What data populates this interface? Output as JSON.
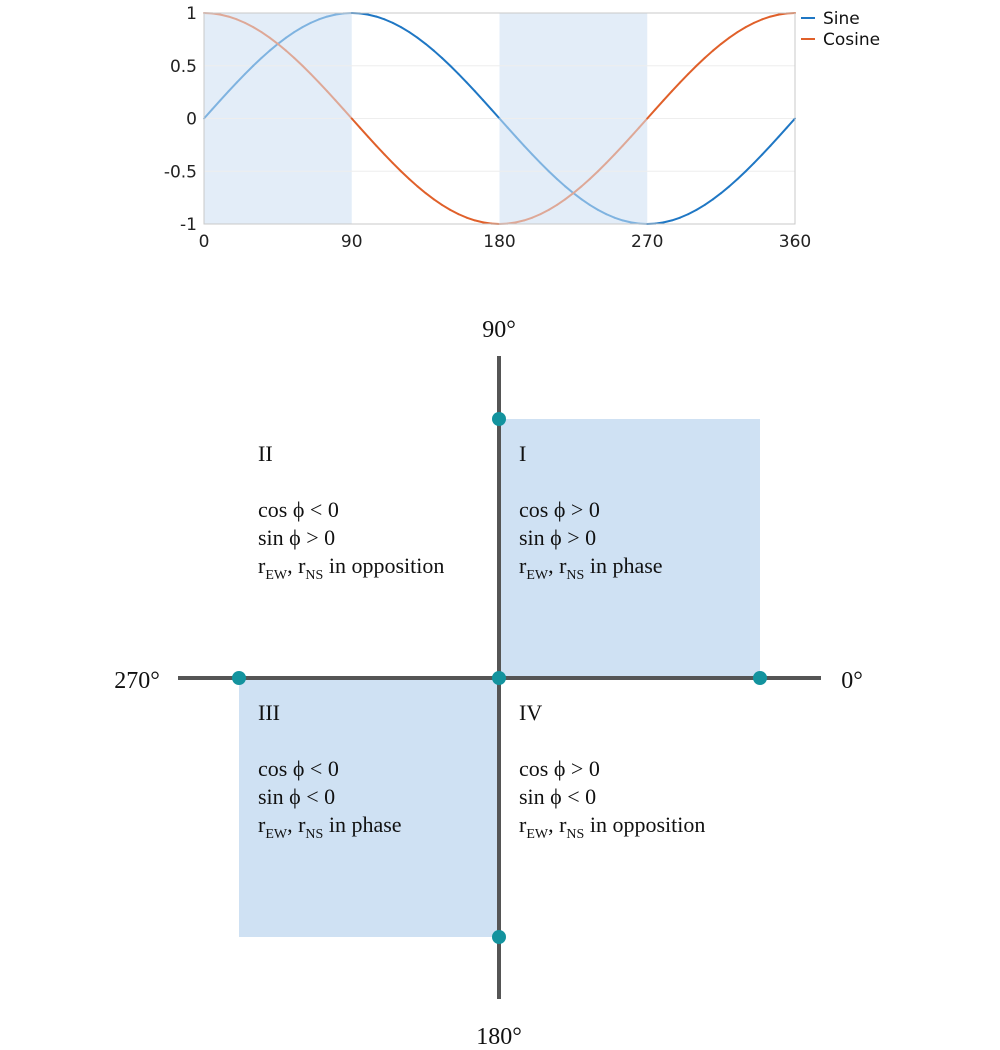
{
  "chart_data": {
    "type": "line",
    "title": "",
    "xlabel": "",
    "ylabel": "",
    "xlim": [
      0,
      360
    ],
    "ylim": [
      -1,
      1
    ],
    "xticks": [
      "0",
      "90",
      "180",
      "270",
      "360"
    ],
    "yticks": [
      "1",
      "0.5",
      "0",
      "-0.5",
      "-1"
    ],
    "shaded_x_ranges": [
      [
        0,
        90
      ],
      [
        180,
        270
      ]
    ],
    "legend_position": "top-right",
    "series": [
      {
        "name": "Sine",
        "function": "sin",
        "x_step": 5,
        "color": "#1f77c4",
        "faded_color": "#7fb3e0"
      },
      {
        "name": "Cosine",
        "function": "cos",
        "x_step": 5,
        "color": "#e0602a",
        "faded_color": "#dea897"
      }
    ]
  },
  "colors": {
    "shade": "#e3edf8",
    "quadrant_fill": "#cfe1f3",
    "axis": "#555555",
    "marker": "#13939e"
  },
  "diagram": {
    "labels": {
      "top": "90°",
      "bottom": "180°",
      "left": "270°",
      "right": "0°"
    },
    "quadrants": [
      {
        "id": "I",
        "numeral": "I",
        "cos": "cos ϕ > 0",
        "sin": "sin ϕ > 0",
        "r1": "r",
        "sub1": "EW",
        "sep": ", r",
        "sub2": "NS",
        "rel": " in phase"
      },
      {
        "id": "II",
        "numeral": "II",
        "cos": "cos ϕ < 0",
        "sin": "sin ϕ > 0",
        "r1": "r",
        "sub1": "EW",
        "sep": ", r",
        "sub2": "NS",
        "rel": " in opposition"
      },
      {
        "id": "III",
        "numeral": "III",
        "cos": "cos ϕ < 0",
        "sin": "sin ϕ < 0",
        "r1": "r",
        "sub1": "EW",
        "sep": ", r",
        "sub2": "NS",
        "rel": " in phase"
      },
      {
        "id": "IV",
        "numeral": "IV",
        "cos": "cos ϕ > 0",
        "sin": "sin ϕ < 0",
        "r1": "r",
        "sub1": "EW",
        "sep": ", r",
        "sub2": "NS",
        "rel": " in opposition"
      }
    ]
  }
}
